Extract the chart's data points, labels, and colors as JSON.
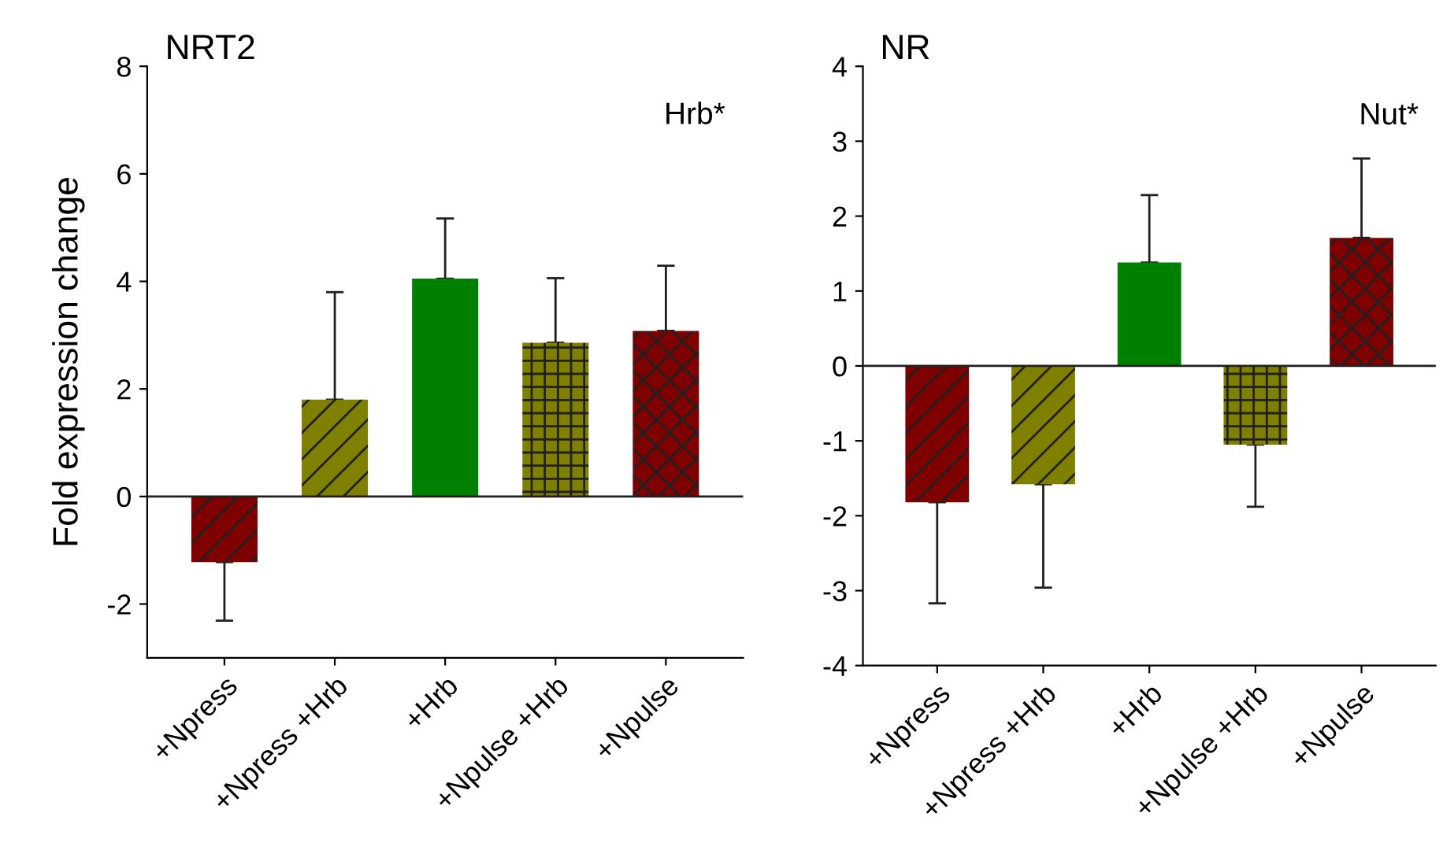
{
  "chart_data": [
    {
      "type": "bar",
      "title": "NRT2",
      "ylabel": "Fold expression change",
      "annotations": [
        "Hrb*"
      ],
      "categories": [
        "+Npress",
        "+Npress +Hrb",
        "+Hrb",
        "+Npulse +Hrb",
        "+Npulse"
      ],
      "values": [
        -1.22,
        1.8,
        4.05,
        2.86,
        3.08
      ],
      "errors": [
        [
          -2.31,
          -1.22
        ],
        [
          1.8,
          3.8
        ],
        [
          4.05,
          5.17
        ],
        [
          2.86,
          4.06
        ],
        [
          3.08,
          4.29
        ]
      ],
      "colors": [
        "#7f0000",
        "#808000",
        "#008000",
        "#808000",
        "#7f0000"
      ],
      "ylim": [
        -3,
        8
      ],
      "yticks": [
        -2,
        0,
        2,
        4,
        6,
        8
      ],
      "ref_lines": [
        {
          "axis": "y",
          "value": 0
        }
      ]
    },
    {
      "type": "bar",
      "title": "NR",
      "annotations": [
        "Nut*"
      ],
      "categories": [
        "+Npress",
        "+Npress +Hrb",
        "+Hrb",
        "+Npulse +Hrb",
        "+Npulse"
      ],
      "values": [
        -1.82,
        -1.58,
        1.38,
        -1.05,
        1.71
      ],
      "errors": [
        [
          -3.17,
          -1.82
        ],
        [
          -2.96,
          -1.58
        ],
        [
          1.38,
          2.28
        ],
        [
          -1.88,
          -1.05
        ],
        [
          1.71,
          2.77
        ]
      ],
      "colors": [
        "#7f0000",
        "#808000",
        "#008000",
        "#808000",
        "#7f0000"
      ],
      "ylim": [
        -4,
        4
      ],
      "yticks": [
        -4,
        -3,
        -2,
        -1,
        0,
        1,
        2,
        3,
        4
      ],
      "ref_lines": [
        {
          "axis": "y",
          "value": 0
        }
      ]
    }
  ]
}
